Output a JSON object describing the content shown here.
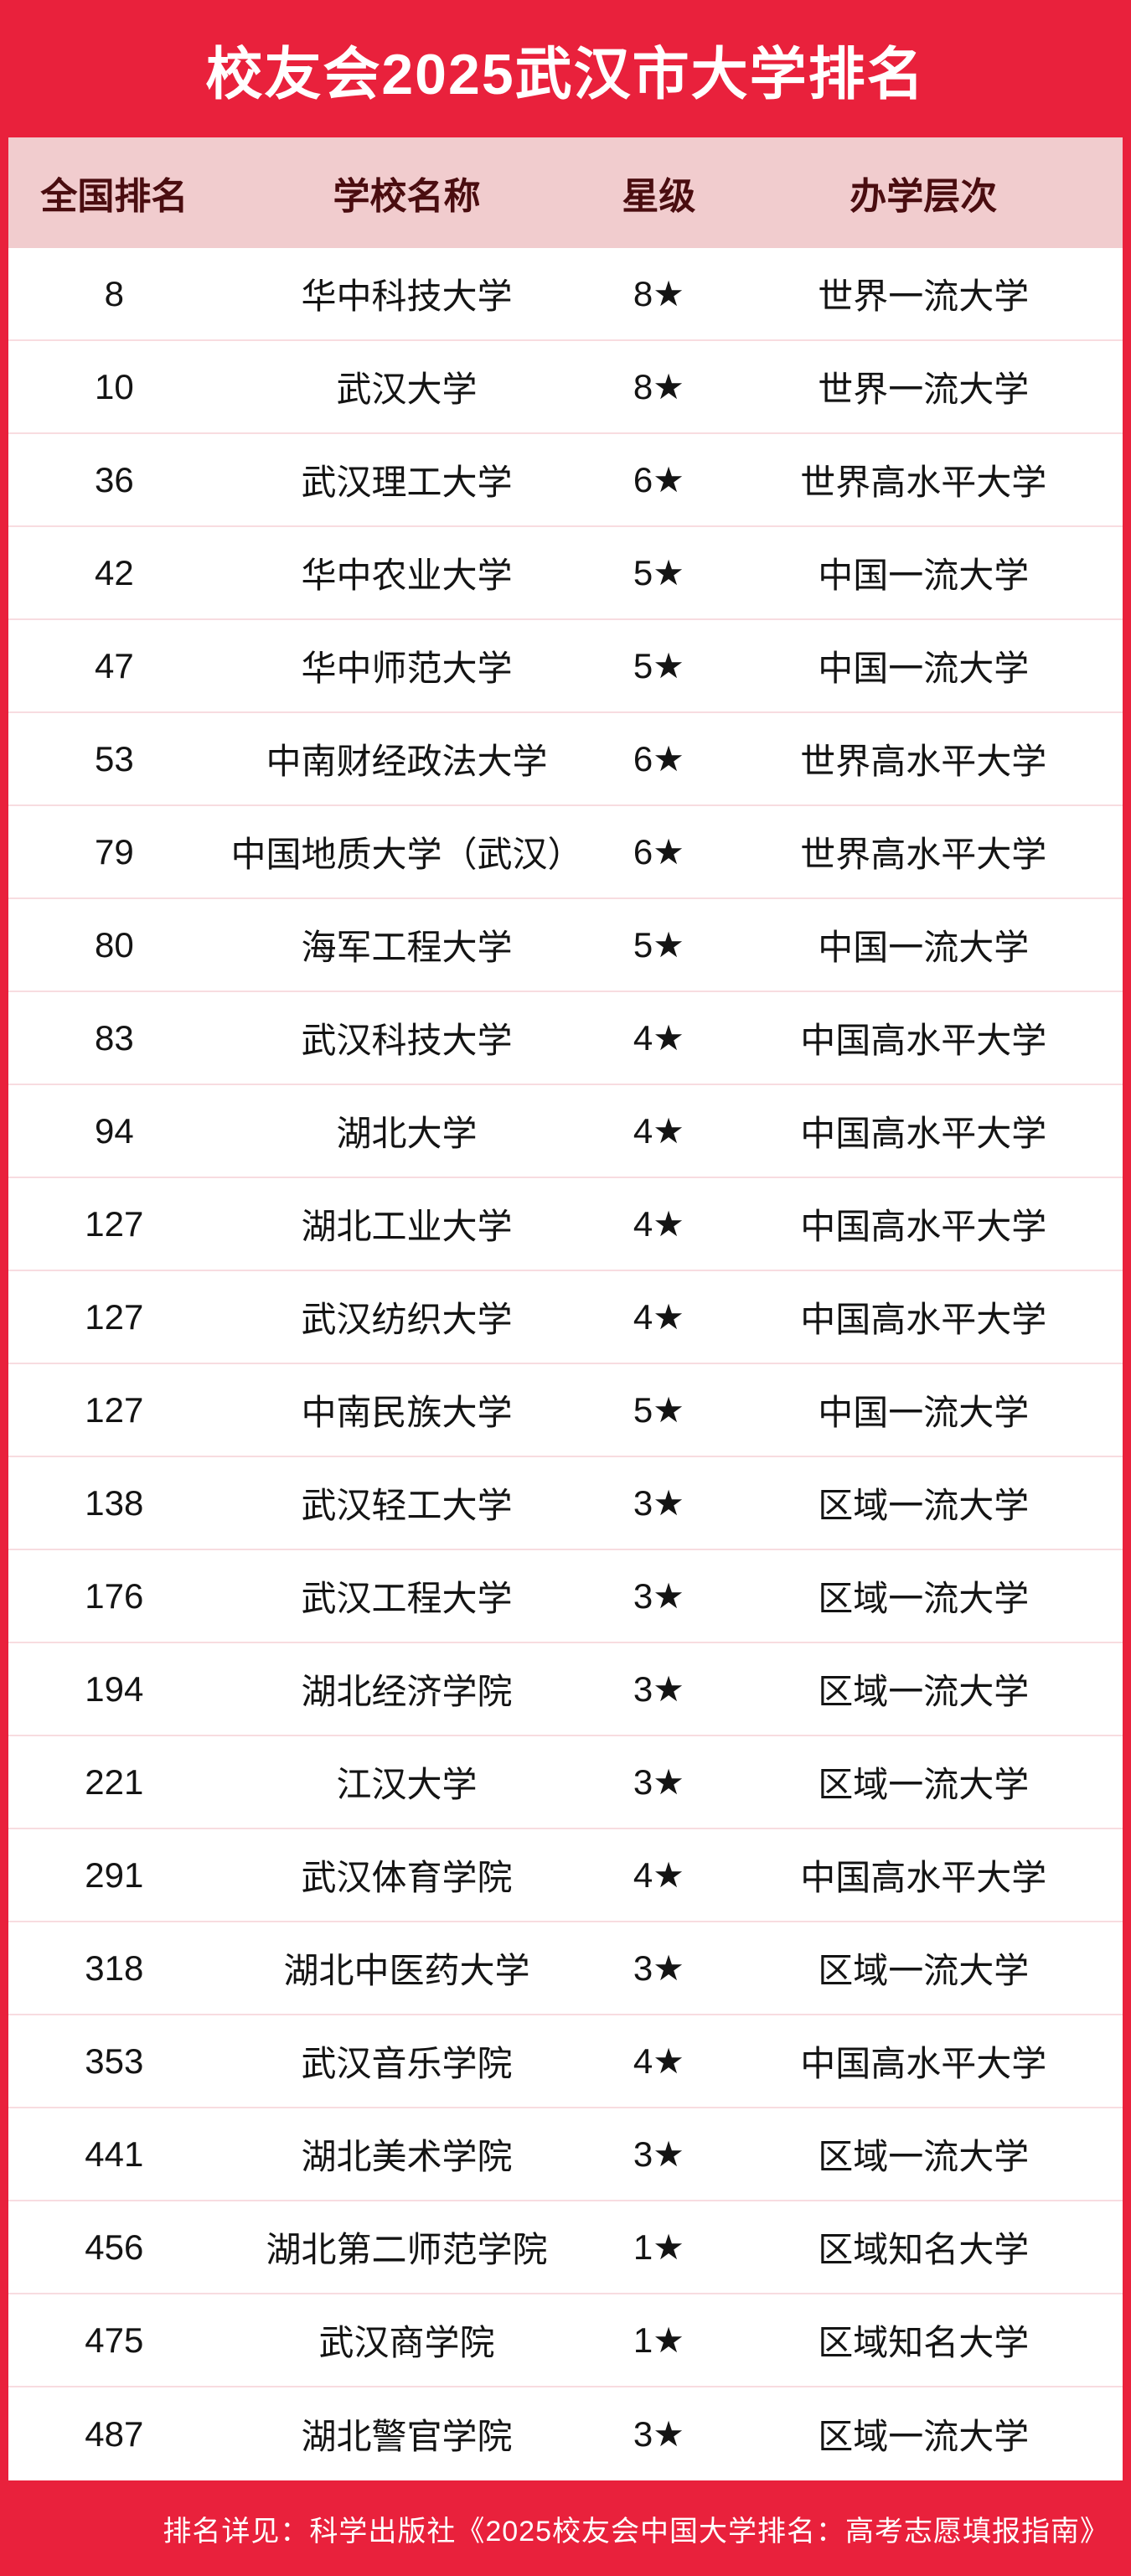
{
  "title": "校友会2025武汉市大学排名",
  "colors": {
    "accent_red": "#e9213c",
    "header_pink": "#f1ccce",
    "header_text": "#4a0d10",
    "body_text": "#141414",
    "divider": "#f8dce0",
    "row_bg": "#ffffff",
    "title_text": "#ffffff"
  },
  "table": {
    "columns": [
      "全国排名",
      "学校名称",
      "星级",
      "办学层次"
    ],
    "rows": [
      {
        "rank": "8",
        "name": "华中科技大学",
        "star": "8★",
        "level": "世界一流大学"
      },
      {
        "rank": "10",
        "name": "武汉大学",
        "star": "8★",
        "level": "世界一流大学"
      },
      {
        "rank": "36",
        "name": "武汉理工大学",
        "star": "6★",
        "level": "世界高水平大学"
      },
      {
        "rank": "42",
        "name": "华中农业大学",
        "star": "5★",
        "level": "中国一流大学"
      },
      {
        "rank": "47",
        "name": "华中师范大学",
        "star": "5★",
        "level": "中国一流大学"
      },
      {
        "rank": "53",
        "name": "中南财经政法大学",
        "star": "6★",
        "level": "世界高水平大学"
      },
      {
        "rank": "79",
        "name": "中国地质大学（武汉）",
        "star": "6★",
        "level": "世界高水平大学"
      },
      {
        "rank": "80",
        "name": "海军工程大学",
        "star": "5★",
        "level": "中国一流大学"
      },
      {
        "rank": "83",
        "name": "武汉科技大学",
        "star": "4★",
        "level": "中国高水平大学"
      },
      {
        "rank": "94",
        "name": "湖北大学",
        "star": "4★",
        "level": "中国高水平大学"
      },
      {
        "rank": "127",
        "name": "湖北工业大学",
        "star": "4★",
        "level": "中国高水平大学"
      },
      {
        "rank": "127",
        "name": "武汉纺织大学",
        "star": "4★",
        "level": "中国高水平大学"
      },
      {
        "rank": "127",
        "name": "中南民族大学",
        "star": "5★",
        "level": "中国一流大学"
      },
      {
        "rank": "138",
        "name": "武汉轻工大学",
        "star": "3★",
        "level": "区域一流大学"
      },
      {
        "rank": "176",
        "name": "武汉工程大学",
        "star": "3★",
        "level": "区域一流大学"
      },
      {
        "rank": "194",
        "name": "湖北经济学院",
        "star": "3★",
        "level": "区域一流大学"
      },
      {
        "rank": "221",
        "name": "江汉大学",
        "star": "3★",
        "level": "区域一流大学"
      },
      {
        "rank": "291",
        "name": "武汉体育学院",
        "star": "4★",
        "level": "中国高水平大学"
      },
      {
        "rank": "318",
        "name": "湖北中医药大学",
        "star": "3★",
        "level": "区域一流大学"
      },
      {
        "rank": "353",
        "name": "武汉音乐学院",
        "star": "4★",
        "level": "中国高水平大学"
      },
      {
        "rank": "441",
        "name": "湖北美术学院",
        "star": "3★",
        "level": "区域一流大学"
      },
      {
        "rank": "456",
        "name": "湖北第二师范学院",
        "star": "1★",
        "level": "区域知名大学"
      },
      {
        "rank": "475",
        "name": "武汉商学院",
        "star": "1★",
        "level": "区域知名大学"
      },
      {
        "rank": "487",
        "name": "湖北警官学院",
        "star": "3★",
        "level": "区域一流大学"
      }
    ]
  },
  "footer": {
    "note": "排名详见：科学出版社《2025校友会中国大学排名：高考志愿填报指南》"
  }
}
